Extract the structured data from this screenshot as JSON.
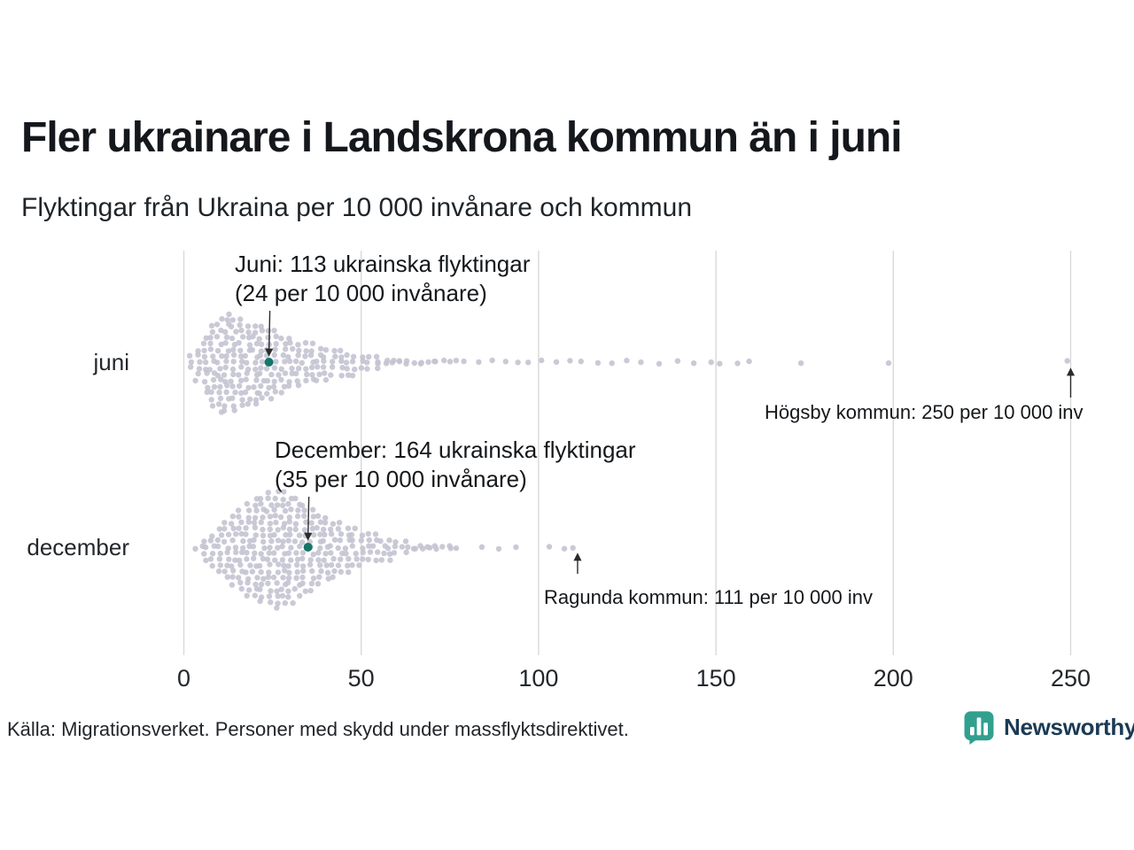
{
  "title": "Fler ukrainare i Landskrona kommun än i juni",
  "subtitle": "Flyktingar från Ukraina per 10 000 invånare och kommun",
  "source": "Källa: Migrationsverket. Personer med skydd under massflyktsdirektivet.",
  "brand": {
    "name": "Newsworthy",
    "icon": "newsworthy-bar-chart-pin-icon",
    "icon_bg": "#31a08e",
    "text_color": "#1b3a54"
  },
  "colors": {
    "dot": "#c4c3d1",
    "highlight": "#14756a",
    "gridline": "#d9d9d9",
    "arrow": "#2b2b2b",
    "text": "#1a1d21"
  },
  "chart_data": {
    "type": "beeswarm",
    "title": "Fler ukrainare i Landskrona kommun än i juni",
    "subtitle": "Flyktingar från Ukraina per 10 000 invånare och kommun",
    "xlabel": "Flyktingar från Ukraina per 10 000 invånare",
    "xlim": [
      0,
      250
    ],
    "x_ticks": [
      0,
      50,
      100,
      150,
      200,
      250
    ],
    "tick_labels": [
      "0",
      "50",
      "100",
      "150",
      "200",
      "250"
    ],
    "grid": "vertical",
    "rows": [
      {
        "label": "juni",
        "highlight": {
          "value": 24,
          "refugees": 113,
          "label_line1": "Juni: 113 ukrainska flyktingar",
          "label_line2": "(24 per 10 000 invånare)"
        },
        "outlier": {
          "value": 250,
          "label": "Högsby kommun: 250 per 10 000 inv"
        },
        "bins": [
          [
            2,
            3
          ],
          [
            4,
            6
          ],
          [
            6,
            10
          ],
          [
            8,
            14
          ],
          [
            10,
            16
          ],
          [
            12,
            17
          ],
          [
            14,
            16
          ],
          [
            16,
            15
          ],
          [
            18,
            14
          ],
          [
            20,
            14
          ],
          [
            22,
            13
          ],
          [
            24,
            12
          ],
          [
            26,
            11
          ],
          [
            28,
            10
          ],
          [
            30,
            9
          ],
          [
            32,
            8
          ],
          [
            34,
            7
          ],
          [
            36,
            7
          ],
          [
            38,
            6
          ],
          [
            40,
            6
          ],
          [
            42,
            5
          ],
          [
            44,
            5
          ],
          [
            46,
            4
          ],
          [
            48,
            4
          ],
          [
            50,
            3
          ],
          [
            52,
            3
          ],
          [
            54,
            3
          ],
          [
            56,
            2
          ],
          [
            58,
            2
          ],
          [
            60,
            2
          ],
          [
            62,
            2
          ],
          [
            64,
            1
          ],
          [
            66,
            2
          ],
          [
            68,
            1
          ],
          [
            70,
            2
          ],
          [
            72,
            1
          ],
          [
            74,
            1
          ],
          [
            76,
            1
          ],
          [
            78,
            1
          ],
          [
            80,
            1
          ],
          [
            84,
            1
          ],
          [
            88,
            1
          ],
          [
            92,
            1
          ],
          [
            95,
            1
          ],
          [
            98,
            1
          ],
          [
            102,
            1
          ],
          [
            106,
            1
          ],
          [
            110,
            1
          ],
          [
            113,
            1
          ],
          [
            118,
            1
          ],
          [
            122,
            1
          ],
          [
            126,
            1
          ],
          [
            130,
            1
          ],
          [
            135,
            1
          ],
          [
            140,
            1
          ],
          [
            145,
            1
          ],
          [
            150,
            2
          ],
          [
            157,
            1
          ],
          [
            160,
            1
          ],
          [
            175,
            1
          ],
          [
            200,
            1
          ],
          [
            250,
            1
          ]
        ]
      },
      {
        "label": "december",
        "highlight": {
          "value": 35,
          "refugees": 164,
          "label_line1": "December: 164 ukrainska flyktingar",
          "label_line2": "(35 per 10 000 invånare)"
        },
        "outlier": {
          "value": 111,
          "label": "Ragunda kommun: 111 per 10 000 inv"
        },
        "bins": [
          [
            4,
            2
          ],
          [
            6,
            4
          ],
          [
            8,
            6
          ],
          [
            10,
            8
          ],
          [
            12,
            10
          ],
          [
            14,
            12
          ],
          [
            16,
            14
          ],
          [
            18,
            16
          ],
          [
            20,
            17
          ],
          [
            22,
            18
          ],
          [
            24,
            19
          ],
          [
            26,
            20
          ],
          [
            28,
            19
          ],
          [
            30,
            18
          ],
          [
            32,
            17
          ],
          [
            34,
            15
          ],
          [
            36,
            14
          ],
          [
            38,
            12
          ],
          [
            40,
            11
          ],
          [
            42,
            10
          ],
          [
            44,
            9
          ],
          [
            46,
            8
          ],
          [
            48,
            7
          ],
          [
            50,
            6
          ],
          [
            52,
            5
          ],
          [
            54,
            5
          ],
          [
            56,
            4
          ],
          [
            58,
            4
          ],
          [
            60,
            3
          ],
          [
            62,
            3
          ],
          [
            64,
            2
          ],
          [
            66,
            2
          ],
          [
            68,
            2
          ],
          [
            70,
            2
          ],
          [
            72,
            1
          ],
          [
            74,
            2
          ],
          [
            76,
            1
          ],
          [
            78,
            1
          ],
          [
            85,
            1
          ],
          [
            90,
            1
          ],
          [
            95,
            1
          ],
          [
            104,
            1
          ],
          [
            108,
            1
          ],
          [
            111,
            1
          ]
        ]
      }
    ]
  }
}
